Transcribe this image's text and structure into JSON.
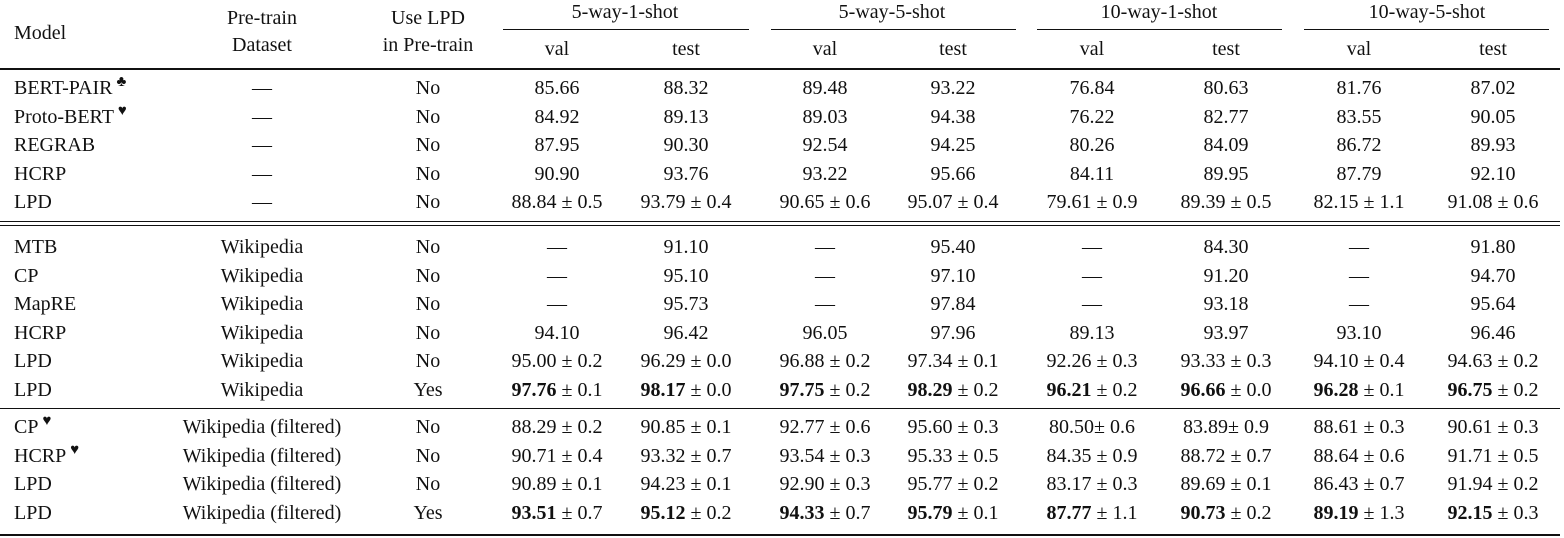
{
  "table": {
    "header": {
      "model": "Model",
      "dataset": [
        "Pre-train",
        "Dataset"
      ],
      "use_lpd": [
        "Use LPD",
        "in Pre-train"
      ],
      "groups": [
        "5-way-1-shot",
        "5-way-5-shot",
        "10-way-1-shot",
        "10-way-5-shot"
      ],
      "sub": [
        "val",
        "test",
        "val",
        "test",
        "val",
        "test",
        "val",
        "test"
      ]
    },
    "sections": [
      {
        "rows": [
          {
            "model": "BERT-PAIR",
            "mark": "♣",
            "dataset": "—",
            "use_lpd": "No",
            "values": [
              "85.66",
              "88.32",
              "89.48",
              "93.22",
              "76.84",
              "80.63",
              "81.76",
              "87.02"
            ],
            "errs": [
              "",
              "",
              "",
              "",
              "",
              "",
              "",
              ""
            ],
            "bold": []
          },
          {
            "model": "Proto-BERT",
            "mark": "♥",
            "dataset": "—",
            "use_lpd": "No",
            "values": [
              "84.92",
              "89.13",
              "89.03",
              "94.38",
              "76.22",
              "82.77",
              "83.55",
              "90.05"
            ],
            "errs": [
              "",
              "",
              "",
              "",
              "",
              "",
              "",
              ""
            ],
            "bold": []
          },
          {
            "model": "REGRAB",
            "mark": "",
            "dataset": "—",
            "use_lpd": "No",
            "values": [
              "87.95",
              "90.30",
              "92.54",
              "94.25",
              "80.26",
              "84.09",
              "86.72",
              "89.93"
            ],
            "errs": [
              "",
              "",
              "",
              "",
              "",
              "",
              "",
              ""
            ],
            "bold": []
          },
          {
            "model": "HCRP",
            "mark": "",
            "dataset": "—",
            "use_lpd": "No",
            "values": [
              "90.90",
              "93.76",
              "93.22",
              "95.66",
              "84.11",
              "89.95",
              "87.79",
              "92.10"
            ],
            "errs": [
              "",
              "",
              "",
              "",
              "",
              "",
              "",
              ""
            ],
            "bold": []
          },
          {
            "model": "LPD",
            "mark": "",
            "dataset": "—",
            "use_lpd": "No",
            "values": [
              "88.84",
              "93.79",
              "90.65",
              "95.07",
              "79.61",
              "89.39",
              "82.15",
              "91.08"
            ],
            "errs": [
              " ± 0.5",
              " ± 0.4",
              " ± 0.6",
              " ± 0.4",
              " ± 0.9",
              " ± 0.5",
              " ± 1.1",
              " ± 0.6"
            ],
            "bold": []
          }
        ]
      },
      {
        "rows": [
          {
            "model": "MTB",
            "mark": "",
            "dataset": "Wikipedia",
            "use_lpd": "No",
            "values": [
              "—",
              "91.10",
              "—",
              "95.40",
              "—",
              "84.30",
              "—",
              "91.80"
            ],
            "errs": [
              "",
              "",
              "",
              "",
              "",
              "",
              "",
              ""
            ],
            "bold": []
          },
          {
            "model": "CP",
            "mark": "",
            "dataset": "Wikipedia",
            "use_lpd": "No",
            "values": [
              "—",
              "95.10",
              "—",
              "97.10",
              "—",
              "91.20",
              "—",
              "94.70"
            ],
            "errs": [
              "",
              "",
              "",
              "",
              "",
              "",
              "",
              ""
            ],
            "bold": []
          },
          {
            "model": "MapRE",
            "mark": "",
            "dataset": "Wikipedia",
            "use_lpd": "No",
            "values": [
              "—",
              "95.73",
              "—",
              "97.84",
              "—",
              "93.18",
              "—",
              "95.64"
            ],
            "errs": [
              "",
              "",
              "",
              "",
              "",
              "",
              "",
              ""
            ],
            "bold": []
          },
          {
            "model": "HCRP",
            "mark": "",
            "dataset": "Wikipedia",
            "use_lpd": "No",
            "values": [
              "94.10",
              "96.42",
              "96.05",
              "97.96",
              "89.13",
              "93.97",
              "93.10",
              "96.46"
            ],
            "errs": [
              "",
              "",
              "",
              "",
              "",
              "",
              "",
              ""
            ],
            "bold": []
          },
          {
            "model": "LPD",
            "mark": "",
            "dataset": "Wikipedia",
            "use_lpd": "No",
            "values": [
              "95.00",
              "96.29",
              "96.88",
              "97.34",
              "92.26",
              "93.33",
              "94.10",
              "94.63"
            ],
            "errs": [
              " ± 0.2",
              " ± 0.0",
              " ± 0.2",
              " ± 0.1",
              " ± 0.3",
              " ± 0.3",
              " ± 0.4",
              " ± 0.2"
            ],
            "bold": []
          },
          {
            "model": "LPD",
            "mark": "",
            "dataset": "Wikipedia",
            "use_lpd": "Yes",
            "values": [
              "97.76",
              "98.17",
              "97.75",
              "98.29",
              "96.21",
              "96.66",
              "96.28",
              "96.75"
            ],
            "errs": [
              " ± 0.1",
              " ± 0.0",
              " ± 0.2",
              " ± 0.2",
              " ± 0.2",
              " ± 0.0",
              " ± 0.1",
              " ± 0.2"
            ],
            "bold": [
              0,
              1,
              2,
              3,
              4,
              5,
              6,
              7
            ]
          }
        ]
      },
      {
        "rows": [
          {
            "model": "CP",
            "mark": "♥",
            "dataset": "Wikipedia (filtered)",
            "use_lpd": "No",
            "values": [
              "88.29",
              "90.85",
              "92.77",
              "95.60",
              "80.50",
              "83.89",
              "88.61",
              "90.61"
            ],
            "errs": [
              " ± 0.2",
              " ± 0.1",
              " ± 0.6",
              " ± 0.3",
              "± 0.6",
              "± 0.9",
              " ± 0.3",
              " ± 0.3"
            ],
            "bold": []
          },
          {
            "model": "HCRP",
            "mark": "♥",
            "dataset": "Wikipedia (filtered)",
            "use_lpd": "No",
            "values": [
              "90.71",
              "93.32",
              "93.54",
              "95.33",
              "84.35",
              "88.72",
              "88.64",
              "91.71"
            ],
            "errs": [
              " ± 0.4",
              " ± 0.7",
              " ± 0.3",
              " ± 0.5",
              " ± 0.9",
              " ± 0.7",
              " ± 0.6",
              " ± 0.5"
            ],
            "bold": []
          },
          {
            "model": "LPD",
            "mark": "",
            "dataset": "Wikipedia (filtered)",
            "use_lpd": "No",
            "values": [
              "90.89",
              "94.23",
              "92.90",
              "95.77",
              "83.17",
              "89.69",
              "86.43",
              "91.94"
            ],
            "errs": [
              " ± 0.1",
              " ± 0.1",
              " ± 0.3",
              " ± 0.2",
              " ± 0.3",
              " ± 0.1",
              " ± 0.7",
              " ± 0.2"
            ],
            "bold": []
          },
          {
            "model": "LPD",
            "mark": "",
            "dataset": "Wikipedia (filtered)",
            "use_lpd": "Yes",
            "values": [
              "93.51",
              "95.12",
              "94.33",
              "95.79",
              "87.77",
              "90.73",
              "89.19",
              "92.15"
            ],
            "errs": [
              " ± 0.7",
              " ± 0.2",
              " ± 0.7",
              " ± 0.1",
              " ± 1.1",
              " ± 0.2",
              " ± 1.3",
              " ± 0.3"
            ],
            "bold": [
              0,
              1,
              2,
              3,
              4,
              5,
              6,
              7
            ]
          }
        ]
      }
    ]
  }
}
